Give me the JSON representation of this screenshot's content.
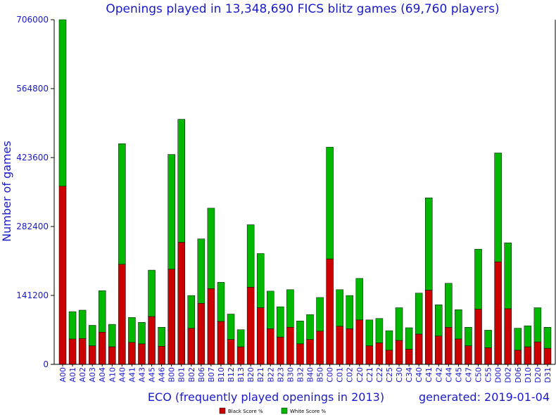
{
  "chart_data": {
    "type": "bar",
    "stacked": true,
    "title": "Openings played in 13,348,690 FICS blitz games (69,760 players)",
    "xlabel": "ECO (frequently played openings in 2013)",
    "ylabel": "Number of games",
    "generated": "generated: 2019-01-04",
    "ylim": [
      0,
      706000
    ],
    "yticks": [
      0,
      141200,
      282400,
      423600,
      564800,
      706000
    ],
    "ytick_labels": [
      "0",
      "141200",
      "282400",
      "423600",
      "564800",
      "706000"
    ],
    "grid": false,
    "legend_position": "bottom-center",
    "categories": [
      "A00",
      "A01",
      "A02",
      "A03",
      "A04",
      "A10",
      "A40",
      "A41",
      "A43",
      "A45",
      "A46",
      "B00",
      "B01",
      "B02",
      "B06",
      "B07",
      "B10",
      "B12",
      "B13",
      "B20",
      "B21",
      "B22",
      "B23",
      "B30",
      "B32",
      "B40",
      "B50",
      "C00",
      "C01",
      "C02",
      "C20",
      "C21",
      "C22",
      "C25",
      "C30",
      "C34",
      "C40",
      "C41",
      "C42",
      "C44",
      "C45",
      "C47",
      "C50",
      "C55",
      "D00",
      "D02",
      "D06",
      "D10",
      "D20",
      "D31"
    ],
    "series": [
      {
        "name": "Black Score %",
        "color": "#cc0000",
        "values": [
          365000,
          52000,
          53000,
          38000,
          66000,
          36000,
          205000,
          45000,
          42000,
          98000,
          37000,
          195000,
          250000,
          74000,
          125000,
          155000,
          88000,
          51000,
          36000,
          158000,
          116000,
          73000,
          56000,
          76000,
          42000,
          51000,
          68000,
          216000,
          78000,
          73000,
          91000,
          38000,
          44000,
          29000,
          49000,
          31000,
          62000,
          152000,
          58000,
          76000,
          52000,
          38000,
          113000,
          34000,
          210000,
          114000,
          29000,
          36000,
          46000,
          33000
        ]
      },
      {
        "name": "White Score %",
        "color": "#00b800",
        "values": [
          341000,
          56000,
          58000,
          42000,
          85000,
          46000,
          247000,
          51000,
          44000,
          95000,
          39000,
          235000,
          252000,
          67000,
          132000,
          165000,
          80000,
          52000,
          35000,
          128000,
          111000,
          77000,
          62000,
          77000,
          47000,
          51000,
          69000,
          229000,
          75000,
          68000,
          85000,
          53000,
          50000,
          40000,
          67000,
          44000,
          84000,
          189000,
          64000,
          90000,
          60000,
          38000,
          123000,
          36000,
          223000,
          135000,
          45000,
          43000,
          70000,
          43000
        ]
      }
    ]
  },
  "colors": {
    "text": "#1a1acc",
    "axis": "#000000",
    "black_score": "#cc0000",
    "white_score": "#00b800"
  }
}
